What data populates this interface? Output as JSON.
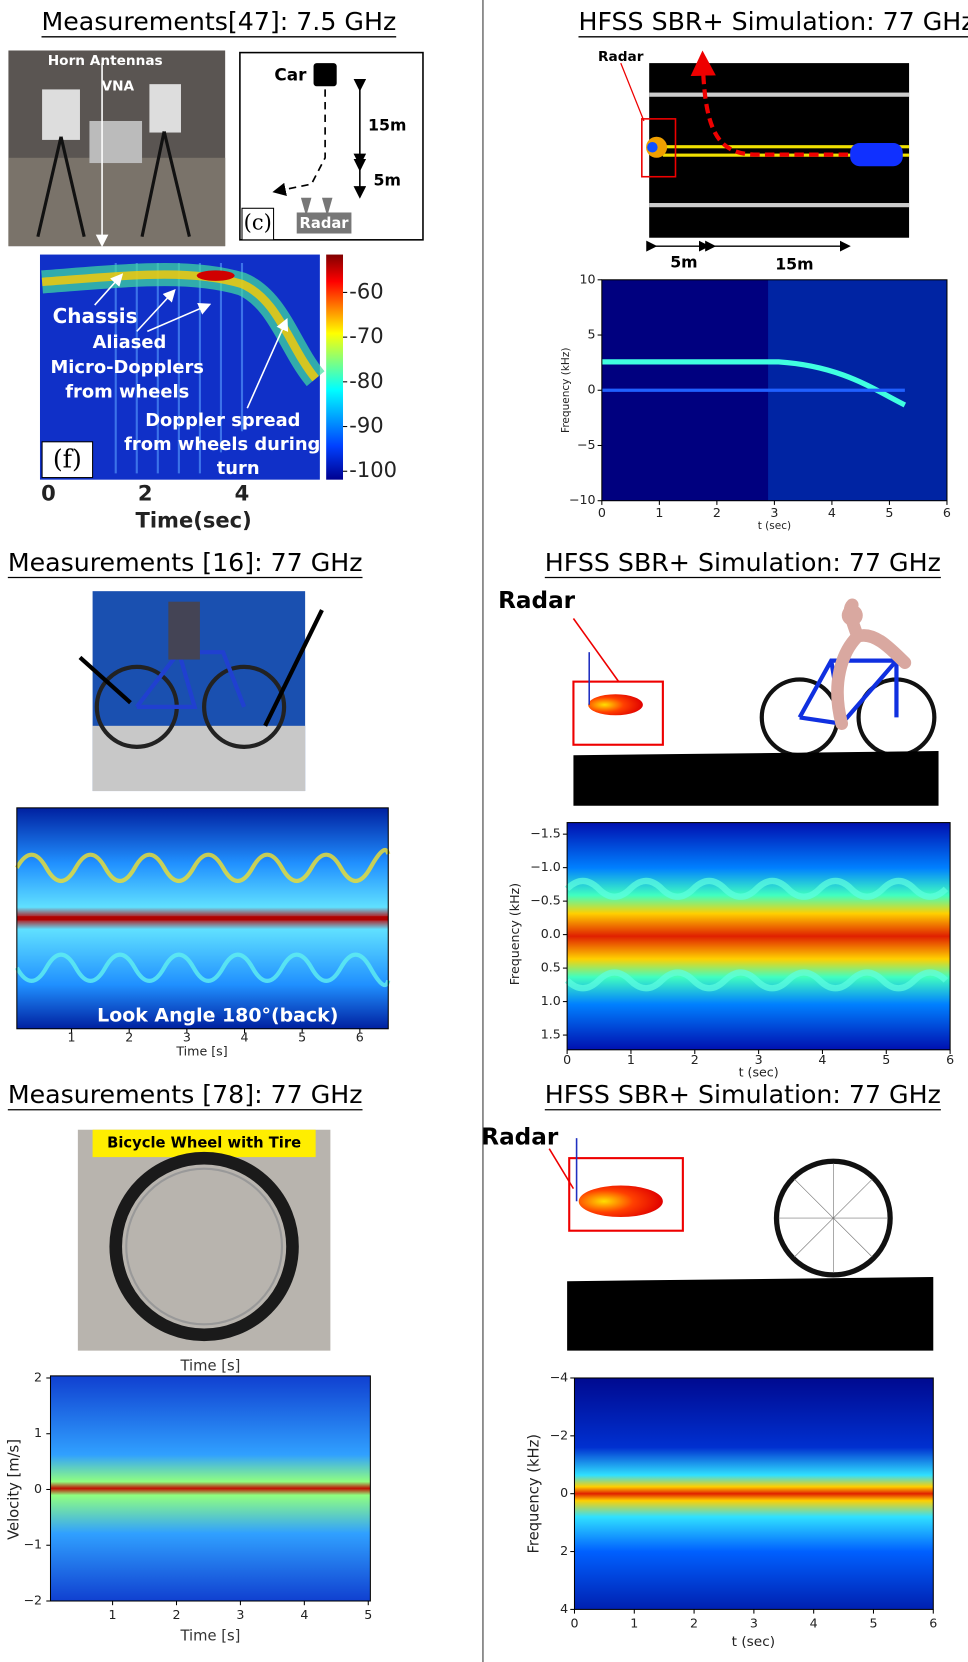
{
  "panels": [
    {
      "title": "Measurements[47]: 7.5 GHz",
      "photo_labels": [
        "Horn Antennas",
        "VNA"
      ],
      "diagram_labels": [
        "Car",
        "15m",
        "5m",
        "Radar",
        "(c)"
      ],
      "annotations": [
        "Chassis",
        "Aliased",
        "Micro-Dopplers",
        "from wheels",
        "Doppler spread",
        "from wheels during",
        "turn"
      ],
      "tag": "(f)",
      "colorbar_ticks": [
        -60,
        -70,
        -80,
        -90,
        -100
      ],
      "xticks": [
        0,
        2,
        4
      ],
      "xlabel": "Time(sec)"
    },
    {
      "title": "HFSS SBR+ Simulation: 77 GHz",
      "scene_labels": [
        "Radar",
        "5m",
        "15m"
      ],
      "yticks": [
        "10",
        "5",
        "0",
        "−5",
        "−10"
      ],
      "xticks": [
        0,
        1,
        2,
        3,
        4,
        5,
        6
      ],
      "xlabel": "t (sec)",
      "ylabel": "Frequency (kHz)"
    },
    {
      "title": "Measurements [16]: 77 GHz",
      "overlay": "Look Angle  180°(back)",
      "xticks": [
        1,
        2,
        3,
        4,
        5,
        6
      ],
      "xlabel": "Time [s]"
    },
    {
      "title": "HFSS SBR+ Simulation: 77 GHz",
      "scene_labels": [
        "Radar"
      ],
      "yticks": [
        "−1.5",
        "−1.0",
        "−0.5",
        "0.0",
        "0.5",
        "1.0",
        "1.5"
      ],
      "xticks": [
        0,
        1,
        2,
        3,
        4,
        5,
        6
      ],
      "xlabel": "t (sec)",
      "ylabel": "Frequency (kHz)"
    },
    {
      "title": "Measurements [78]: 77 GHz",
      "photo_labels": [
        "Bicycle Wheel with Tire"
      ],
      "top_label": "Time [s]",
      "yticks": [
        "2",
        "1",
        "0",
        "−1",
        "−2"
      ],
      "xticks": [
        1,
        2,
        3,
        4,
        5
      ],
      "xlabel": "Time [s]",
      "ylabel": "Velocity [m/s]"
    },
    {
      "title": "HFSS SBR+ Simulation: 77 GHz",
      "scene_labels": [
        "Radar"
      ],
      "yticks": [
        "−4",
        "−2",
        "0",
        "2",
        "4"
      ],
      "xticks": [
        0,
        1,
        2,
        3,
        4,
        5,
        6
      ],
      "xlabel": "t (sec)",
      "ylabel": "Frequency (kHz)"
    }
  ]
}
